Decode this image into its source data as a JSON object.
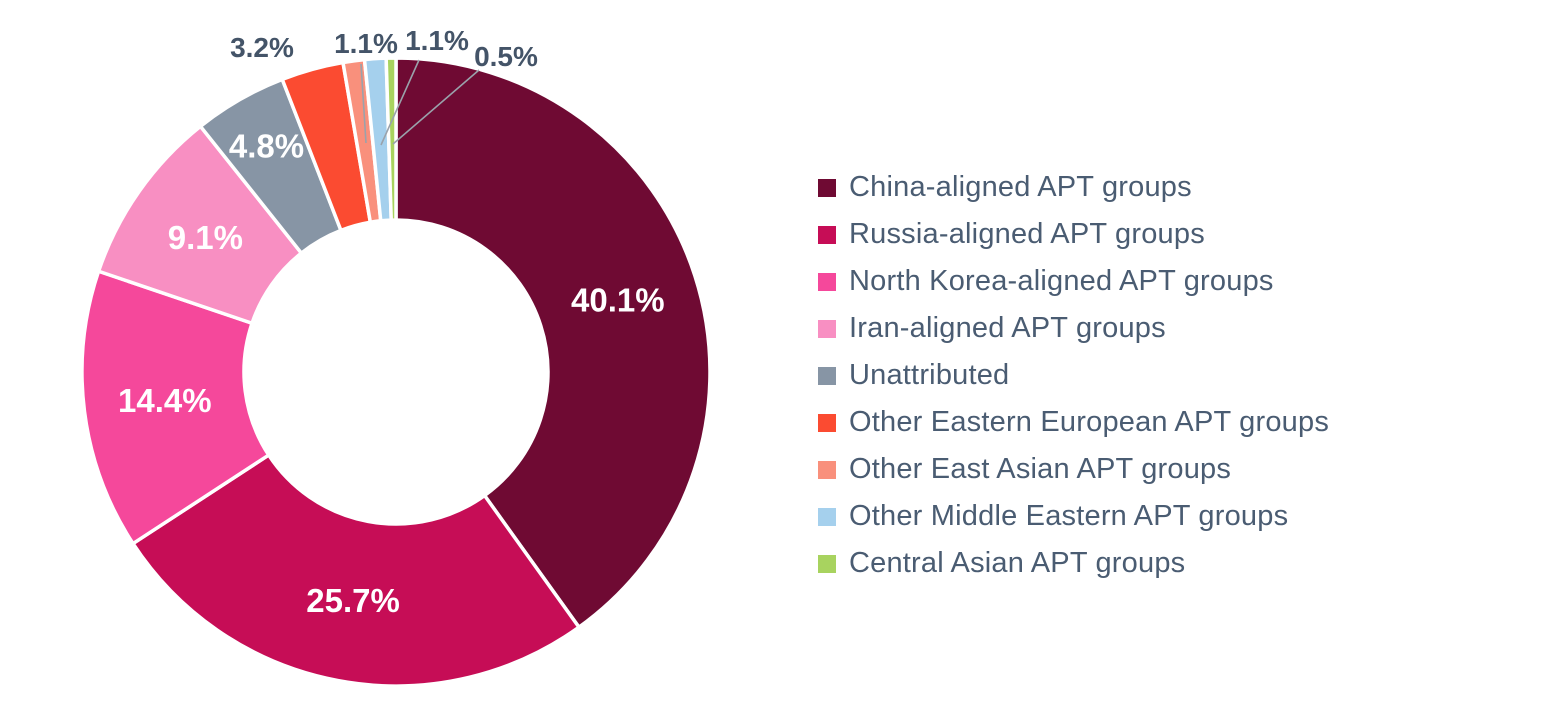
{
  "chart_data": {
    "type": "pie",
    "subtype": "donut",
    "title": "",
    "legend_position": "right",
    "background": "#FFFFFF",
    "inside_label_color": "#FFFFFF",
    "outside_label_color": "#445468",
    "legend_text_color": "#4A5C72",
    "leader_line_color": "#9AA2AB",
    "series": [
      {
        "label": "China-aligned APT groups",
        "value": 40.1,
        "display": "40.1%",
        "color": "#6F0A33"
      },
      {
        "label": "Russia-aligned APT groups",
        "value": 25.7,
        "display": "25.7%",
        "color": "#C60D56"
      },
      {
        "label": "North Korea-aligned APT groups",
        "value": 14.4,
        "display": "14.4%",
        "color": "#F5489B"
      },
      {
        "label": "Iran-aligned APT groups",
        "value": 9.1,
        "display": "9.1%",
        "color": "#F88FC2"
      },
      {
        "label": "Unattributed",
        "value": 4.8,
        "display": "4.8%",
        "color": "#8795A5"
      },
      {
        "label": "Other Eastern European APT groups",
        "value": 3.2,
        "display": "3.2%",
        "color": "#FB4B31"
      },
      {
        "label": "Other East Asian APT groups",
        "value": 1.1,
        "display": "1.1%",
        "color": "#F9907C"
      },
      {
        "label": "Other Middle Eastern APT groups",
        "value": 1.1,
        "display": "1.1%",
        "color": "#A5D0ED"
      },
      {
        "label": "Central Asian APT groups",
        "value": 0.5,
        "display": "0.5%",
        "color": "#A8D35F"
      }
    ]
  }
}
